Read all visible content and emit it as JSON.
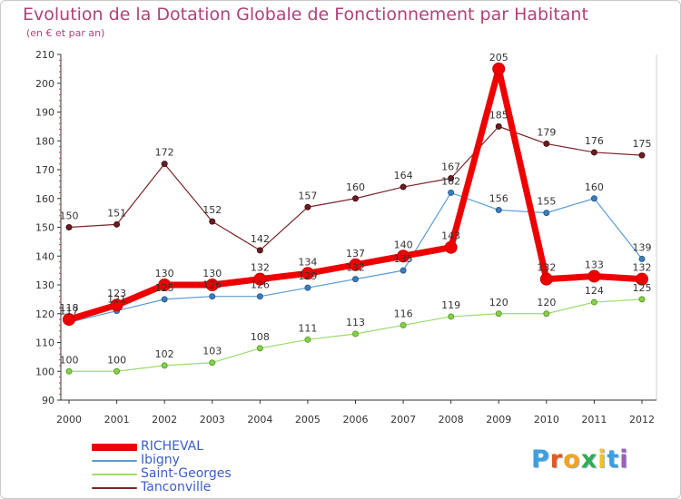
{
  "title": "Evolution de la Dotation Globale de Fonctionnement par Habitant",
  "subtitle": "(en € et par an)",
  "logo": {
    "letters": [
      "P",
      "r",
      "o",
      "x",
      "i",
      "t",
      "i"
    ],
    "colors": [
      "#3aa0e0",
      "#e25a1c",
      "#f2a51c",
      "#2fae54",
      "#f2c31c",
      "#3aa0e0",
      "#9c5fb5"
    ]
  },
  "chart_data": {
    "type": "line",
    "title": "Evolution de la Dotation Globale de Fonctionnement par Habitant",
    "subtitle": "(en € et par an)",
    "categories": [
      "2000",
      "2001",
      "2002",
      "2003",
      "2004",
      "2005",
      "2006",
      "2007",
      "2008",
      "2009",
      "2010",
      "2011",
      "2012"
    ],
    "yticks": [
      "90",
      "100",
      "110",
      "120",
      "130",
      "140",
      "150",
      "160",
      "170",
      "180",
      "190",
      "200",
      "210"
    ],
    "ylim": [
      90,
      210
    ],
    "grid": false,
    "legend_position": "bottom-left",
    "series": [
      {
        "name": "RICHEVAL",
        "color": "#ee0000",
        "values": [
          118,
          123,
          130,
          130,
          132,
          134,
          137,
          140,
          143,
          205,
          132,
          133,
          132
        ]
      },
      {
        "name": "Ibigny",
        "color": "#5b9bd5",
        "values": [
          117,
          121,
          125,
          126,
          126,
          129,
          132,
          135,
          162,
          156,
          155,
          160,
          139
        ]
      },
      {
        "name": "Saint-Georges",
        "color": "#9cdc6a",
        "values": [
          100,
          100,
          102,
          103,
          108,
          111,
          113,
          116,
          119,
          120,
          120,
          124,
          125
        ]
      },
      {
        "name": "Tanconville",
        "color": "#7a2428",
        "values": [
          150,
          151,
          172,
          152,
          142,
          157,
          160,
          164,
          167,
          185,
          179,
          176,
          175
        ]
      }
    ]
  }
}
